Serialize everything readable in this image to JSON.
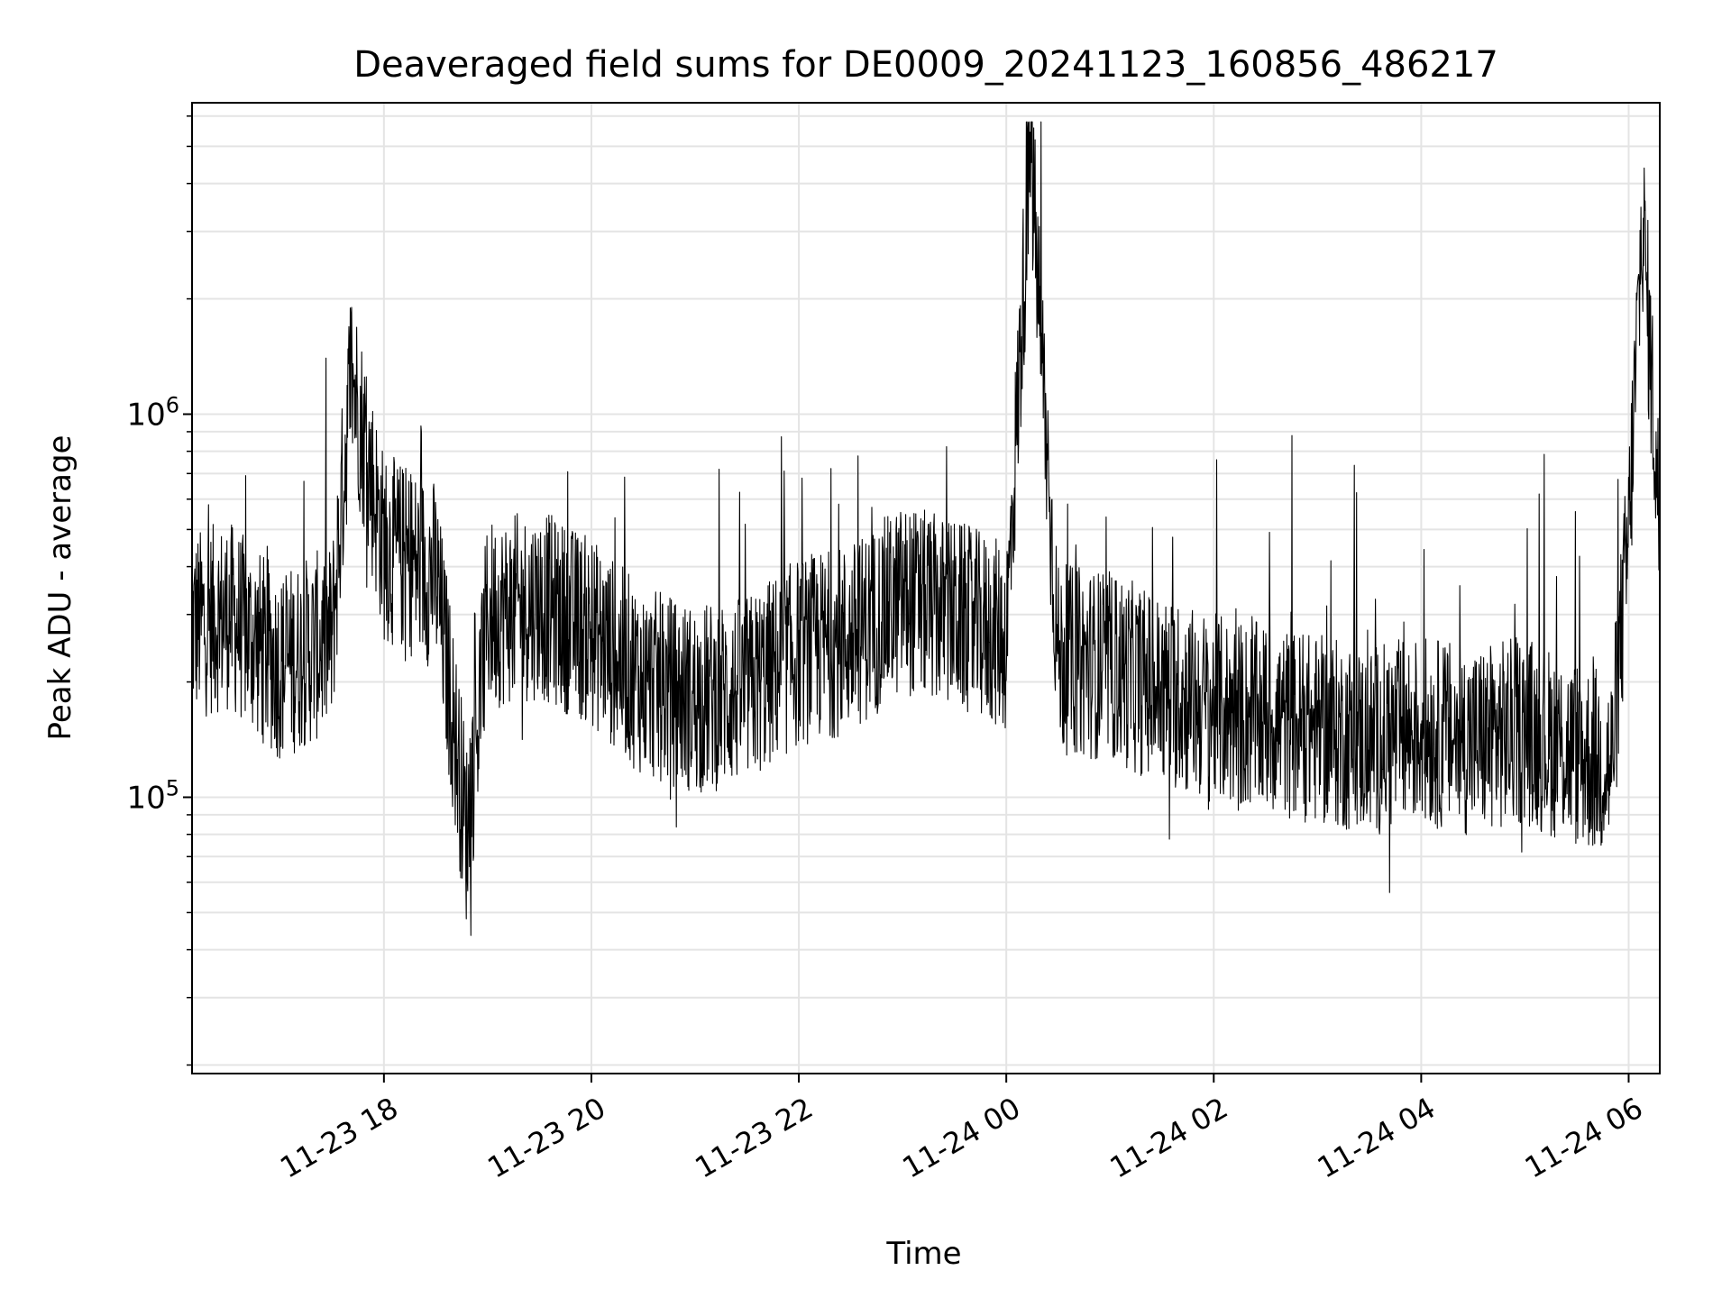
{
  "chart_data": {
    "type": "line",
    "title": "Deaveraged field sums for DE0009_20241123_160856_486217",
    "xlabel": "Time",
    "ylabel": "Peak ADU - average",
    "y_scale": "log",
    "ylim": [
      19000,
      6500000
    ],
    "xlim": [
      "2024-11-23 16:09",
      "2024-11-24 06:18"
    ],
    "x_ticks": [
      {
        "value": "2024-11-23 18:00",
        "label": "11-23 18"
      },
      {
        "value": "2024-11-23 20:00",
        "label": "11-23 20"
      },
      {
        "value": "2024-11-23 22:00",
        "label": "11-23 22"
      },
      {
        "value": "2024-11-24 00:00",
        "label": "11-24 00"
      },
      {
        "value": "2024-11-24 02:00",
        "label": "11-24 02"
      },
      {
        "value": "2024-11-24 04:00",
        "label": "11-24 04"
      },
      {
        "value": "2024-11-24 06:00",
        "label": "11-24 06"
      }
    ],
    "y_ticks": [
      {
        "value": 100000,
        "base": "10",
        "exp": "5"
      },
      {
        "value": 1000000,
        "base": "10",
        "exp": "6"
      }
    ],
    "grid": true,
    "line_color": "#000000",
    "series": [
      {
        "x": [
          "2024-11-23 16:09",
          "2024-11-23 16:30",
          "2024-11-23 17:00",
          "2024-11-23 17:30",
          "2024-11-23 17:41",
          "2024-11-23 18:00",
          "2024-11-23 18:30",
          "2024-11-23 18:48",
          "2024-11-23 19:00",
          "2024-11-23 19:30",
          "2024-11-23 20:00",
          "2024-11-23 20:30",
          "2024-11-23 21:00",
          "2024-11-23 21:30",
          "2024-11-23 22:00",
          "2024-11-23 22:30",
          "2024-11-23 23:00",
          "2024-11-23 23:30",
          "2024-11-24 00:00",
          "2024-11-24 00:14",
          "2024-11-24 00:30",
          "2024-11-24 01:00",
          "2024-11-24 01:30",
          "2024-11-24 02:00",
          "2024-11-24 02:30",
          "2024-11-24 03:00",
          "2024-11-24 03:30",
          "2024-11-24 04:00",
          "2024-11-24 04:30",
          "2024-11-24 05:00",
          "2024-11-24 05:30",
          "2024-11-24 05:50",
          "2024-11-24 06:00",
          "2024-11-24 06:08",
          "2024-11-24 06:18"
        ],
        "y": [
          280000,
          300000,
          220000,
          260000,
          1300000,
          450000,
          380000,
          80000,
          300000,
          320000,
          270000,
          200000,
          180000,
          190000,
          240000,
          260000,
          330000,
          300000,
          260000,
          5000000,
          230000,
          220000,
          190000,
          170000,
          160000,
          150000,
          140000,
          150000,
          140000,
          150000,
          130000,
          120000,
          480000,
          3300000,
          500000
        ]
      }
    ]
  }
}
